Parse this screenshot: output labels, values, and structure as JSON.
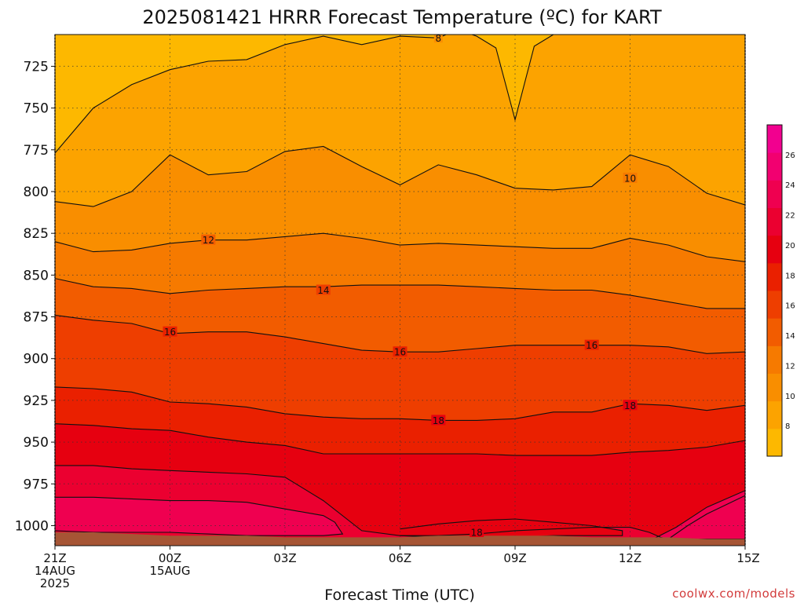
{
  "page_title": "2025081421 HRRR Forecast Temperature (ºC) for KART",
  "credit": "coolwx.com/models",
  "chart_data": {
    "type": "heatmap",
    "title": "2025081421 HRRR Forecast Temperature (ºC) for KART",
    "xlabel": "Forecast Time (UTC)",
    "ylabel": "",
    "x_unit": "hours after 21Z 14AUG 2025",
    "xlim": [
      0,
      18
    ],
    "ylim": [
      1012,
      706
    ],
    "y_axis": "pressure (hPa), increasing downward",
    "x_ticks": [
      {
        "value": 0,
        "lines": [
          "21Z",
          "14AUG",
          "2025"
        ]
      },
      {
        "value": 3,
        "lines": [
          "00Z",
          "15AUG"
        ]
      },
      {
        "value": 6,
        "lines": [
          "03Z"
        ]
      },
      {
        "value": 9,
        "lines": [
          "06Z"
        ]
      },
      {
        "value": 12,
        "lines": [
          "09Z"
        ]
      },
      {
        "value": 15,
        "lines": [
          "12Z"
        ]
      },
      {
        "value": 18,
        "lines": [
          "15Z"
        ]
      }
    ],
    "y_ticks": [
      725,
      750,
      775,
      800,
      825,
      850,
      875,
      900,
      925,
      950,
      975,
      1000
    ],
    "grid": true,
    "colorbar": {
      "placement": "right",
      "ticks": [
        8,
        10,
        12,
        14,
        16,
        18,
        20,
        22,
        24,
        26
      ],
      "min": 6,
      "max": 28,
      "colors": [
        "#fdb800",
        "#fca300",
        "#f98e00",
        "#f67a00",
        "#f25c00",
        "#ee3e00",
        "#ea2000",
        "#e60010",
        "#eb0030",
        "#ef0050",
        "#f20070",
        "#f2008f"
      ]
    },
    "surface_color": "#a65535",
    "surface_pressure": [
      1004,
      1004,
      1005,
      1006,
      1006,
      1006,
      1007,
      1007,
      1007,
      1007,
      1006,
      1006,
      1006,
      1006,
      1007,
      1007,
      1007,
      1008,
      1008
    ],
    "contours": [
      {
        "level": 8,
        "x": [
          0,
          1,
          2,
          3,
          4,
          5,
          6,
          7,
          8,
          9,
          10,
          10.5,
          11,
          11.5,
          12,
          12.5,
          13,
          13.5,
          14,
          15,
          16,
          17,
          18
        ],
        "p": [
          777,
          750,
          736,
          727,
          722,
          721,
          712,
          707,
          712,
          707,
          708,
          703,
          707,
          714,
          757,
          713,
          706,
          706,
          706,
          706,
          706,
          706,
          706
        ]
      },
      {
        "level": 10,
        "x": [
          0,
          1,
          2,
          3,
          4,
          5,
          6,
          7,
          8,
          9,
          10,
          11,
          12,
          13,
          14,
          15,
          16,
          17,
          18
        ],
        "p": [
          806,
          809,
          800,
          778,
          790,
          788,
          776,
          773,
          785,
          796,
          784,
          790,
          798,
          799,
          797,
          778,
          785,
          801,
          808
        ]
      },
      {
        "level": 12,
        "x": [
          0,
          1,
          2,
          3,
          4,
          5,
          6,
          7,
          8,
          9,
          10,
          11,
          12,
          13,
          14,
          15,
          16,
          17,
          18
        ],
        "p": [
          830,
          836,
          835,
          831,
          829,
          829,
          827,
          825,
          828,
          832,
          831,
          832,
          833,
          834,
          834,
          828,
          832,
          839,
          842
        ]
      },
      {
        "level": 14,
        "x": [
          0,
          1,
          2,
          3,
          4,
          5,
          6,
          7,
          8,
          9,
          10,
          11,
          12,
          13,
          14,
          15,
          16,
          17,
          18
        ],
        "p": [
          852,
          857,
          858,
          861,
          859,
          858,
          857,
          857,
          856,
          856,
          856,
          857,
          858,
          859,
          859,
          862,
          866,
          870,
          870
        ]
      },
      {
        "level": 16,
        "x": [
          0,
          1,
          2,
          3,
          4,
          5,
          6,
          7,
          8,
          9,
          10,
          11,
          12,
          13,
          14,
          15,
          16,
          17,
          18
        ],
        "p": [
          874,
          877,
          879,
          885,
          884,
          884,
          887,
          891,
          895,
          896,
          896,
          894,
          892,
          892,
          892,
          892,
          893,
          897,
          896
        ]
      },
      {
        "level": 18,
        "x": [
          0,
          1,
          2,
          3,
          4,
          5,
          6,
          7,
          8,
          9,
          10,
          11,
          12,
          13,
          14,
          15,
          16,
          17,
          18
        ],
        "p": [
          917,
          918,
          920,
          926,
          927,
          929,
          933,
          935,
          936,
          936,
          937,
          937,
          936,
          932,
          932,
          927,
          928,
          931,
          928
        ]
      },
      {
        "level": 20,
        "x": [
          0,
          1,
          2,
          3,
          4,
          5,
          6,
          7,
          8,
          9,
          10,
          11,
          12,
          13,
          14,
          15,
          16,
          17,
          18
        ],
        "p": [
          939,
          940,
          942,
          943,
          947,
          950,
          952,
          957,
          957,
          957,
          957,
          957,
          958,
          958,
          958,
          956,
          955,
          953,
          949
        ]
      },
      {
        "level": 22,
        "x": [
          0,
          0.5,
          1,
          2,
          3,
          4,
          5,
          6,
          7,
          8,
          9,
          10,
          11,
          12,
          13,
          14,
          15,
          15.5,
          15.8,
          16,
          16.5,
          17,
          18
        ],
        "p": [
          964,
          964,
          964,
          966,
          967,
          968,
          969,
          971,
          985,
          1003,
          1006,
          1006,
          1005,
          1003,
          1002,
          1001,
          1001,
          1004,
          1007,
          1008,
          1000,
          993,
          982
        ]
      }
    ],
    "closed_contours": [
      {
        "level": 24,
        "x": [
          0,
          1,
          2,
          3,
          4,
          5,
          6,
          7,
          7.3,
          7.5,
          7,
          6,
          5,
          4,
          3,
          2,
          1,
          0
        ],
        "p": [
          983,
          983,
          984,
          985,
          985,
          986,
          990,
          994,
          998,
          1005,
          1006,
          1006,
          1006,
          1005,
          1004,
          1004,
          1004,
          1003
        ]
      },
      {
        "level": 24,
        "x": [
          15.6,
          16.2,
          17,
          18,
          18,
          17,
          16.3,
          15.6
        ],
        "p": [
          1008,
          1001,
          989,
          979,
          1008,
          1008,
          1008,
          1008
        ]
      },
      {
        "level": 20,
        "x": [
          9,
          10,
          11,
          12,
          13,
          14,
          14.8,
          14.8,
          14,
          13,
          12,
          11,
          10,
          9
        ],
        "p": [
          1002,
          999,
          997,
          996,
          998,
          1000,
          1003,
          1006,
          1006,
          1006,
          1007,
          1007,
          1007,
          1006
        ]
      }
    ],
    "contour_labels": [
      {
        "level": 8,
        "x": 10,
        "p": 708
      },
      {
        "level": 10,
        "x": 15,
        "p": 792
      },
      {
        "level": 12,
        "x": 4,
        "p": 829
      },
      {
        "level": 14,
        "x": 7,
        "p": 859
      },
      {
        "level": 16,
        "x": 3,
        "p": 884
      },
      {
        "level": 16,
        "x": 9,
        "p": 896
      },
      {
        "level": 16,
        "x": 14,
        "p": 892
      },
      {
        "level": 18,
        "x": 10,
        "p": 937
      },
      {
        "level": 18,
        "x": 15,
        "p": 928
      },
      {
        "level": 18,
        "x": 11,
        "p": 1004
      }
    ]
  }
}
